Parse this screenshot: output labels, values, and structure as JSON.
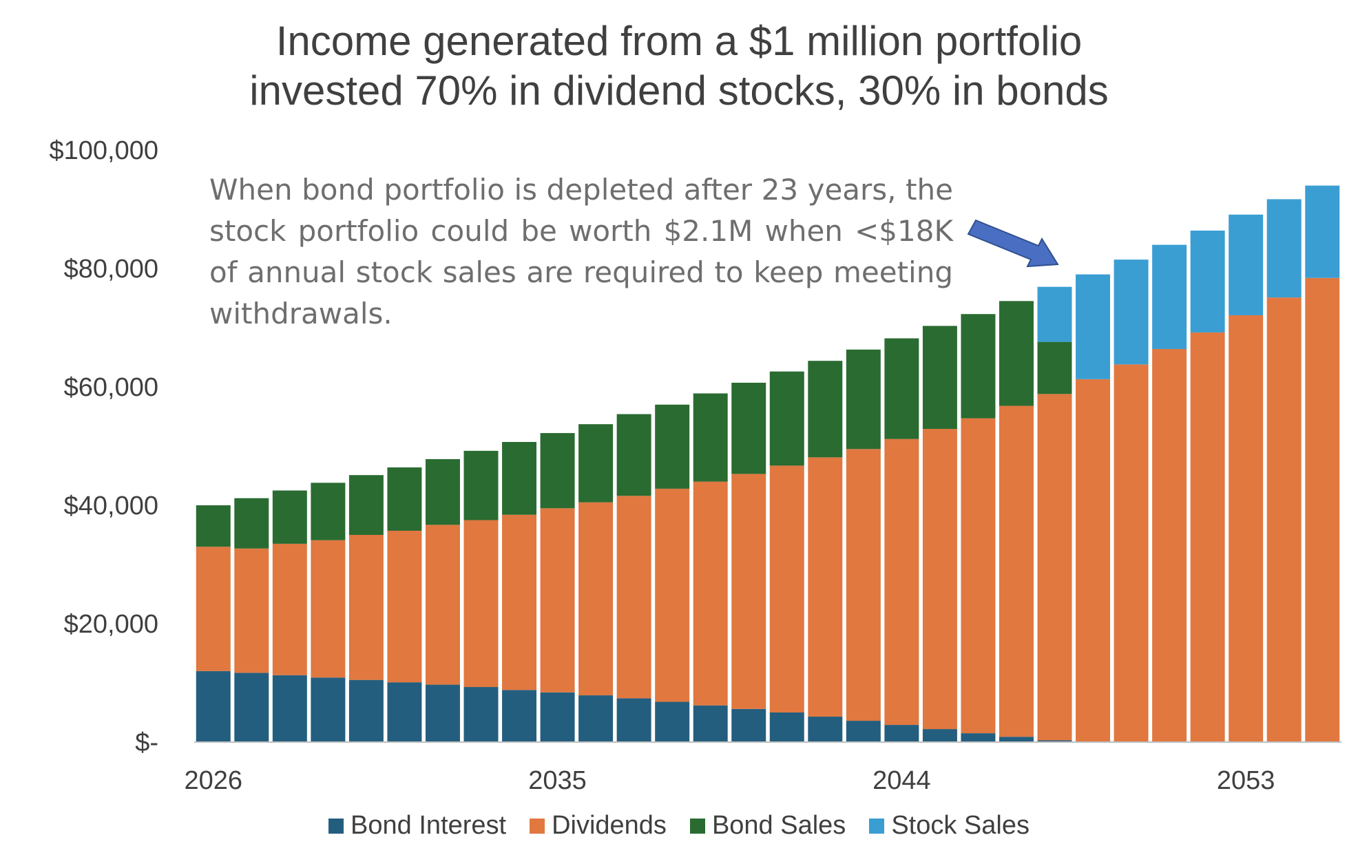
{
  "chart_data": {
    "type": "bar",
    "stacked": true,
    "title_lines": [
      "Income generated from a $1 million portfolio",
      "invested 70% in dividend stocks, 30% in bonds"
    ],
    "xlabel": "",
    "ylabel": "",
    "ylim": [
      0,
      100000
    ],
    "y_ticks": [
      0,
      20000,
      40000,
      60000,
      80000,
      100000
    ],
    "y_tick_labels": [
      "$-",
      "$20,000",
      "$40,000",
      "$60,000",
      "$80,000",
      "$100,000"
    ],
    "x_tick_labels": [
      "2026",
      "2035",
      "2044",
      "2053"
    ],
    "categories": [
      "2026",
      "2027",
      "2028",
      "2029",
      "2030",
      "2031",
      "2032",
      "2033",
      "2034",
      "2035",
      "2036",
      "2037",
      "2038",
      "2039",
      "2040",
      "2041",
      "2042",
      "2043",
      "2044",
      "2045",
      "2046",
      "2047",
      "2048",
      "2049",
      "2050",
      "2051",
      "2052",
      "2053",
      "2054",
      "2055"
    ],
    "series": [
      {
        "name": "Bond Interest",
        "color": "#245e7f",
        "values": [
          12000,
          11700,
          11300,
          10900,
          10500,
          10100,
          9700,
          9300,
          8800,
          8400,
          7900,
          7400,
          6800,
          6200,
          5600,
          5000,
          4300,
          3600,
          2900,
          2200,
          1500,
          900,
          300,
          0,
          0,
          0,
          0,
          0,
          0,
          0
        ]
      },
      {
        "name": "Dividends",
        "color": "#e07840",
        "values": [
          21000,
          21000,
          22200,
          23200,
          24500,
          25600,
          27000,
          28200,
          29600,
          31100,
          32600,
          34200,
          36000,
          37800,
          39700,
          41700,
          43800,
          45900,
          48300,
          50700,
          53200,
          55900,
          58500,
          61300,
          63800,
          66400,
          69200,
          72100,
          75100,
          78400
        ]
      },
      {
        "name": "Bond Sales",
        "color": "#2a6b31",
        "values": [
          7000,
          8500,
          9000,
          9700,
          10100,
          10700,
          11100,
          11700,
          12300,
          12700,
          13200,
          13800,
          14200,
          14900,
          15400,
          15900,
          16300,
          16800,
          17000,
          17400,
          17600,
          17700,
          8800,
          0,
          0,
          0,
          0,
          0,
          0,
          0
        ]
      },
      {
        "name": "Stock Sales",
        "color": "#3a9ed3",
        "values": [
          0,
          0,
          0,
          0,
          0,
          0,
          0,
          0,
          0,
          0,
          0,
          0,
          0,
          0,
          0,
          0,
          0,
          0,
          0,
          0,
          0,
          0,
          9300,
          17700,
          17700,
          17600,
          17200,
          17000,
          16600,
          15600
        ]
      }
    ],
    "legend_position": "bottom",
    "grid": false,
    "annotation": "When bond portfolio is depleted after 23 years, the stock portfolio could be worth $2.1M when <$18K of annual stock sales are required to keep meeting withdrawals.",
    "arrow_color": "#4a6fc2"
  }
}
